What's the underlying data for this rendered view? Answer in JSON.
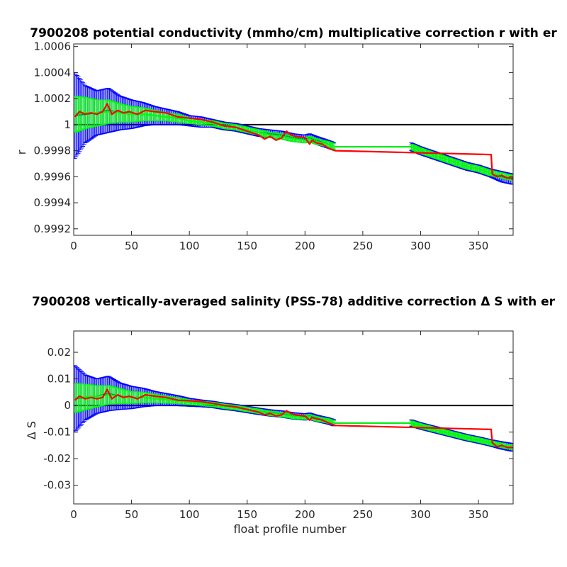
{
  "chart_data": [
    {
      "type": "line",
      "title": "7900208 potential conductivity (mmho/cm) multiplicative correction r with er",
      "xlabel": "",
      "ylabel": "r",
      "xlim": [
        0,
        380
      ],
      "ylim": [
        0.99915,
        1.00062
      ],
      "xticks": [
        "0",
        "50",
        "100",
        "150",
        "200",
        "250",
        "300",
        "350"
      ],
      "yticks": [
        "0.9992",
        "0.9994",
        "0.9996",
        "0.9998",
        "1",
        "1.0002",
        "1.0004",
        "1.0006"
      ],
      "ytick_values": [
        0.9992,
        0.9994,
        0.9996,
        0.9998,
        1.0,
        1.0002,
        1.0004,
        1.0006
      ],
      "reference_line": 1.0,
      "grid": false,
      "series": [
        {
          "color": "#0000ff",
          "style": "errorbar",
          "x": [
            1,
            10,
            20,
            30,
            40,
            50,
            60,
            70,
            80,
            90,
            100,
            110,
            120,
            130,
            140,
            150,
            160,
            170,
            180,
            190,
            200,
            204,
            210,
            220,
            226,
            292,
            300,
            310,
            320,
            330,
            340,
            350,
            360,
            370,
            380
          ],
          "y": [
            1.00007,
            1.00008,
            1.00009,
            1.00011,
            1.00009,
            1.00008,
            1.00008,
            1.00007,
            1.00006,
            1.00005,
            1.00003,
            1.00002,
            1.00001,
            0.99999,
            0.99998,
            0.99996,
            0.99994,
            0.99993,
            0.99992,
            0.9999,
            0.99989,
            0.9999,
            0.99988,
            0.99985,
            0.99983,
            0.99983,
            0.9998,
            0.99977,
            0.99974,
            0.99971,
            0.99968,
            0.99966,
            0.99963,
            0.9996,
            0.99958
          ],
          "err": [
            0.00033,
            0.00022,
            0.00017,
            0.00017,
            0.00013,
            0.00011,
            9e-05,
            7e-05,
            6e-05,
            5e-05,
            4e-05,
            4e-05,
            3e-05,
            3e-05,
            3e-05,
            3e-05,
            3e-05,
            3e-05,
            3e-05,
            3e-05,
            3e-05,
            3e-05,
            3e-05,
            3e-05,
            3e-05,
            3e-05,
            3e-05,
            3e-05,
            3e-05,
            3e-05,
            3e-05,
            3e-05,
            3e-05,
            4e-05,
            4e-05
          ]
        },
        {
          "color": "#00ff00",
          "style": "errorbar",
          "x": [
            1,
            10,
            20,
            30,
            40,
            50,
            60,
            70,
            80,
            90,
            100,
            110,
            120,
            130,
            140,
            150,
            160,
            170,
            180,
            190,
            200,
            204,
            210,
            220,
            226,
            292,
            300,
            310,
            320,
            330,
            340,
            350,
            360,
            370,
            380
          ],
          "y": [
            1.00008,
            1.00009,
            1.00009,
            1.0001,
            1.00009,
            1.00008,
            1.00008,
            1.00007,
            1.00006,
            1.00005,
            1.00003,
            1.00002,
            1.00001,
            0.99999,
            0.99998,
            0.99996,
            0.99994,
            0.99992,
            0.99991,
            0.99989,
            0.99988,
            0.99989,
            0.99987,
            0.99985,
            0.99983,
            0.99983,
            0.9998,
            0.99977,
            0.99974,
            0.99971,
            0.99968,
            0.99966,
            0.99963,
            0.99961,
            0.99959
          ],
          "err": [
            0.00014,
            0.00012,
            0.0001,
            9e-05,
            7e-05,
            6e-05,
            5e-05,
            4e-05,
            3e-05,
            3e-05,
            2e-05,
            2e-05,
            2e-05,
            2e-05,
            2e-05,
            2e-05,
            2e-05,
            2e-05,
            2e-05,
            2e-05,
            2e-05,
            2e-05,
            2e-05,
            2e-05,
            2e-05,
            2e-05,
            2e-05,
            2e-05,
            2e-05,
            2e-05,
            2e-05,
            2e-05,
            2e-05,
            2e-05,
            2e-05
          ]
        },
        {
          "color": "#ff0000",
          "style": "line",
          "x": [
            1,
            5,
            10,
            15,
            20,
            25,
            29,
            33,
            38,
            43,
            48,
            55,
            62,
            70,
            80,
            90,
            100,
            110,
            120,
            130,
            140,
            150,
            160,
            165,
            170,
            175,
            180,
            184,
            188,
            192,
            200,
            204,
            206,
            210,
            215,
            220,
            226,
            361,
            362,
            366,
            370,
            375,
            380
          ],
          "y": [
            1.00006,
            1.0001,
            1.00008,
            1.00009,
            1.00008,
            1.0001,
            1.00016,
            1.00008,
            1.00011,
            1.00009,
            1.0001,
            1.00008,
            1.00011,
            1.0001,
            1.00009,
            1.00006,
            1.00005,
            1.00004,
            1.00002,
            0.99999,
            0.99998,
            0.99995,
            0.99992,
            0.99989,
            0.99991,
            0.99988,
            0.9999,
            0.99995,
            0.99992,
            0.99991,
            0.9999,
            0.99985,
            0.99988,
            0.99986,
            0.99985,
            0.99982,
            0.9998,
            0.99977,
            0.99962,
            0.9996,
            0.99961,
            0.99959,
            0.99959
          ]
        }
      ]
    },
    {
      "type": "line",
      "title": "7900208 vertically-averaged salinity (PSS-78) additive correction Δ S with er",
      "xlabel": "float profile number",
      "ylabel": "Δ S",
      "xlim": [
        0,
        380
      ],
      "ylim": [
        -0.037,
        0.028
      ],
      "xticks": [
        "0",
        "50",
        "100",
        "150",
        "200",
        "250",
        "300",
        "350"
      ],
      "yticks": [
        "0.02",
        "0.01",
        "0",
        "-0.01",
        "-0.02",
        "-0.03"
      ],
      "ytick_values": [
        0.02,
        0.01,
        0.0,
        -0.01,
        -0.02,
        -0.03
      ],
      "reference_line": 0.0,
      "grid": false,
      "series": [
        {
          "color": "#0000ff",
          "style": "errorbar",
          "x": [
            1,
            10,
            20,
            30,
            40,
            50,
            60,
            70,
            80,
            90,
            100,
            110,
            120,
            130,
            140,
            150,
            160,
            170,
            180,
            190,
            200,
            204,
            210,
            220,
            226,
            292,
            300,
            310,
            320,
            330,
            340,
            350,
            360,
            370,
            380
          ],
          "y": [
            0.0025,
            0.003,
            0.0035,
            0.0045,
            0.0035,
            0.003,
            0.003,
            0.0026,
            0.0022,
            0.0018,
            0.0012,
            0.0008,
            0.0004,
            -0.0003,
            -0.0008,
            -0.0015,
            -0.0022,
            -0.0028,
            -0.0032,
            -0.0039,
            -0.0043,
            -0.004,
            -0.0048,
            -0.0058,
            -0.0066,
            -0.0066,
            -0.0077,
            -0.0088,
            -0.0099,
            -0.011,
            -0.0121,
            -0.013,
            -0.014,
            -0.015,
            -0.0158
          ],
          "err": [
            0.0125,
            0.0085,
            0.0065,
            0.0065,
            0.005,
            0.0042,
            0.0035,
            0.0027,
            0.0023,
            0.0019,
            0.0015,
            0.0013,
            0.0012,
            0.0012,
            0.0012,
            0.0012,
            0.0012,
            0.0012,
            0.0012,
            0.0012,
            0.0012,
            0.0012,
            0.0012,
            0.0012,
            0.0012,
            0.0012,
            0.0012,
            0.0012,
            0.0012,
            0.0012,
            0.0012,
            0.0012,
            0.0012,
            0.0014,
            0.0015
          ]
        },
        {
          "color": "#00ff00",
          "style": "errorbar",
          "x": [
            1,
            10,
            20,
            30,
            40,
            50,
            60,
            70,
            80,
            90,
            100,
            110,
            120,
            130,
            140,
            150,
            160,
            170,
            180,
            190,
            200,
            204,
            210,
            220,
            226,
            292,
            300,
            310,
            320,
            330,
            340,
            350,
            360,
            370,
            380
          ],
          "y": [
            0.0028,
            0.0032,
            0.0035,
            0.004,
            0.0035,
            0.003,
            0.003,
            0.0026,
            0.0022,
            0.0018,
            0.0012,
            0.0008,
            0.0004,
            -0.0003,
            -0.0008,
            -0.0015,
            -0.0022,
            -0.003,
            -0.0034,
            -0.0041,
            -0.0045,
            -0.0042,
            -0.005,
            -0.0058,
            -0.0066,
            -0.0066,
            -0.0077,
            -0.0088,
            -0.0099,
            -0.011,
            -0.0121,
            -0.013,
            -0.014,
            -0.015,
            -0.0158
          ],
          "err": [
            0.0055,
            0.0048,
            0.004,
            0.0035,
            0.0028,
            0.0022,
            0.002,
            0.0016,
            0.0013,
            0.0011,
            0.0009,
            0.0008,
            0.0008,
            0.0008,
            0.0008,
            0.0008,
            0.0008,
            0.0008,
            0.0008,
            0.0008,
            0.0008,
            0.0008,
            0.0008,
            0.0008,
            0.0008,
            0.0008,
            0.0008,
            0.0008,
            0.0008,
            0.0008,
            0.0008,
            0.0008,
            0.0008,
            0.0008,
            0.0008
          ]
        },
        {
          "color": "#ff0000",
          "style": "line",
          "x": [
            1,
            5,
            10,
            15,
            20,
            25,
            29,
            33,
            38,
            43,
            48,
            55,
            62,
            70,
            80,
            90,
            100,
            110,
            120,
            130,
            140,
            150,
            160,
            165,
            170,
            175,
            180,
            184,
            188,
            192,
            200,
            204,
            206,
            210,
            215,
            220,
            226,
            361,
            362,
            366,
            370,
            375,
            380
          ],
          "y": [
            0.002,
            0.0035,
            0.0025,
            0.003,
            0.0025,
            0.003,
            0.006,
            0.0025,
            0.004,
            0.003,
            0.0035,
            0.0025,
            0.004,
            0.0035,
            0.003,
            0.002,
            0.0018,
            0.0015,
            0.0008,
            0.0,
            -0.0005,
            -0.0015,
            -0.0025,
            -0.0035,
            -0.003,
            -0.004,
            -0.0035,
            -0.002,
            -0.003,
            -0.0035,
            -0.004,
            -0.0055,
            -0.0045,
            -0.005,
            -0.0055,
            -0.0065,
            -0.0075,
            -0.009,
            -0.014,
            -0.0155,
            -0.015,
            -0.0158,
            -0.0158
          ]
        }
      ]
    }
  ]
}
